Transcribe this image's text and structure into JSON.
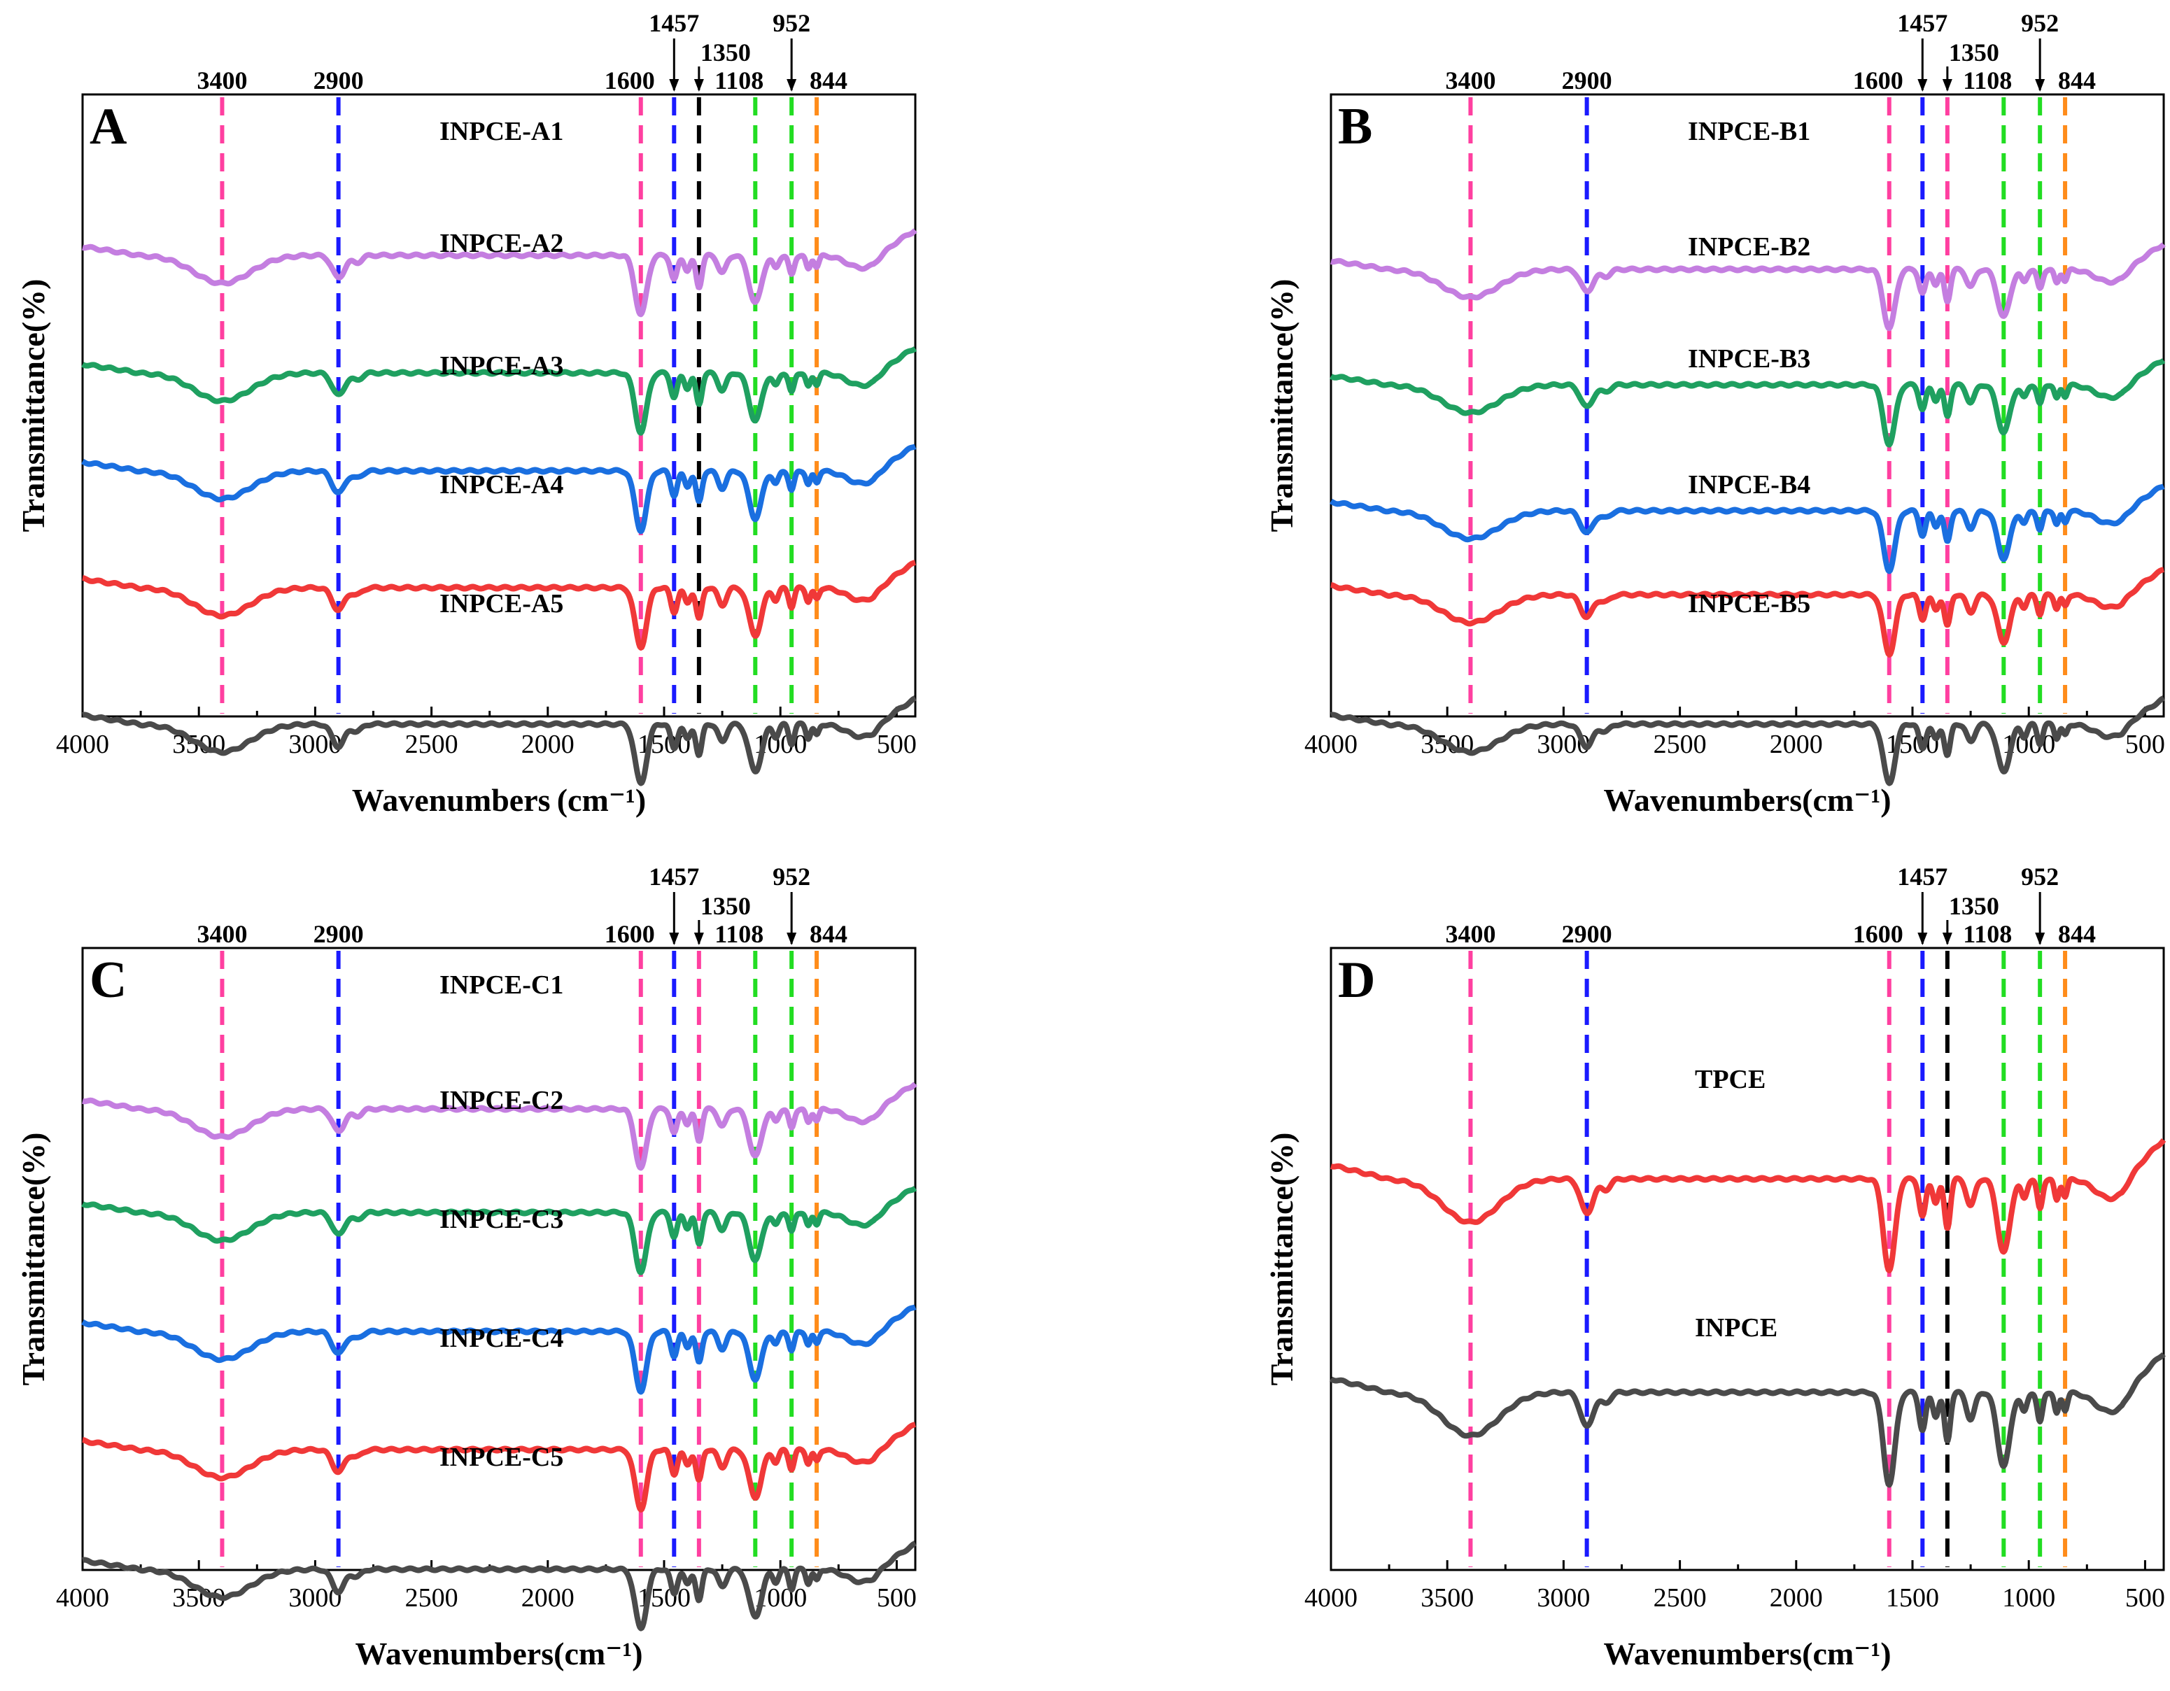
{
  "chart_data": [
    {
      "type": "line",
      "panel": "A",
      "title": "",
      "xlabel": "Wavenumbers (cm⁻¹)",
      "ylabel": "Transmittance(%)",
      "xlim": [
        4000,
        420
      ],
      "x_ticks": [
        "4000",
        "3500",
        "3000",
        "2500",
        "2000",
        "1500",
        "1000",
        "500"
      ],
      "markers": [
        {
          "x": 3400,
          "label": "3400",
          "color": "#ff3fa0"
        },
        {
          "x": 2900,
          "label": "2900",
          "color": "#1a1aff"
        },
        {
          "x": 1600,
          "label": "1600",
          "color": "#ff3fa0"
        },
        {
          "x": 1457,
          "label": "1457",
          "color": "#1a1aff",
          "arrow": true
        },
        {
          "x": 1350,
          "label": "1350",
          "color": "#000000",
          "arrow": true
        },
        {
          "x": 1108,
          "label": "1108",
          "color": "#22dd22"
        },
        {
          "x": 952,
          "label": "952",
          "color": "#22dd22",
          "arrow": true
        },
        {
          "x": 844,
          "label": "844",
          "color": "#ff8c1a"
        }
      ],
      "series": [
        {
          "name": "INPCE-A1",
          "color": "#c47ee0"
        },
        {
          "name": "INPCE-A2",
          "color": "#1fa060"
        },
        {
          "name": "INPCE-A3",
          "color": "#1a6fe0"
        },
        {
          "name": "INPCE-A4",
          "color": "#f03838"
        },
        {
          "name": "INPCE-A5",
          "color": "#4a4a4a"
        }
      ]
    },
    {
      "type": "line",
      "panel": "B",
      "title": "",
      "xlabel": "Wavenumbers(cm⁻¹)",
      "ylabel": "Transmittance(%)",
      "xlim": [
        4000,
        420
      ],
      "x_ticks": [
        "4000",
        "3500",
        "3000",
        "2500",
        "2000",
        "1500",
        "1000",
        "500"
      ],
      "markers": [
        {
          "x": 3400,
          "label": "3400",
          "color": "#ff3fa0"
        },
        {
          "x": 2900,
          "label": "2900",
          "color": "#1a1aff"
        },
        {
          "x": 1600,
          "label": "1600",
          "color": "#ff3fa0"
        },
        {
          "x": 1457,
          "label": "1457",
          "color": "#1a1aff",
          "arrow": true
        },
        {
          "x": 1350,
          "label": "1350",
          "color": "#ff3fa0",
          "arrow": true
        },
        {
          "x": 1108,
          "label": "1108",
          "color": "#22dd22"
        },
        {
          "x": 952,
          "label": "952",
          "color": "#22dd22",
          "arrow": true
        },
        {
          "x": 844,
          "label": "844",
          "color": "#ff8c1a"
        }
      ],
      "series": [
        {
          "name": "INPCE-B1",
          "color": "#c47ee0"
        },
        {
          "name": "INPCE-B2",
          "color": "#1fa060"
        },
        {
          "name": "INPCE-B3",
          "color": "#1a6fe0"
        },
        {
          "name": "INPCE-B4",
          "color": "#f03838"
        },
        {
          "name": "INPCE-B5",
          "color": "#4a4a4a"
        }
      ]
    },
    {
      "type": "line",
      "panel": "C",
      "title": "",
      "xlabel": "Wavenumbers(cm⁻¹)",
      "ylabel": "Transmittance(%)",
      "xlim": [
        4000,
        420
      ],
      "x_ticks": [
        "4000",
        "3500",
        "3000",
        "2500",
        "2000",
        "1500",
        "1000",
        "500"
      ],
      "markers": [
        {
          "x": 3400,
          "label": "3400",
          "color": "#ff3fa0"
        },
        {
          "x": 2900,
          "label": "2900",
          "color": "#1a1aff"
        },
        {
          "x": 1600,
          "label": "1600",
          "color": "#ff3fa0"
        },
        {
          "x": 1457,
          "label": "1457",
          "color": "#1a1aff",
          "arrow": true
        },
        {
          "x": 1350,
          "label": "1350",
          "color": "#ff3fa0",
          "arrow": true
        },
        {
          "x": 1108,
          "label": "1108",
          "color": "#22dd22"
        },
        {
          "x": 952,
          "label": "952",
          "color": "#22dd22",
          "arrow": true
        },
        {
          "x": 844,
          "label": "844",
          "color": "#ff8c1a"
        }
      ],
      "series": [
        {
          "name": "INPCE-C1",
          "color": "#c47ee0"
        },
        {
          "name": "INPCE-C2",
          "color": "#1fa060"
        },
        {
          "name": "INPCE-C3",
          "color": "#1a6fe0"
        },
        {
          "name": "INPCE-C4",
          "color": "#f03838"
        },
        {
          "name": "INPCE-C5",
          "color": "#4a4a4a"
        }
      ]
    },
    {
      "type": "line",
      "panel": "D",
      "title": "",
      "xlabel": "Wavenumbers(cm⁻¹)",
      "ylabel": "Transmittance(%)",
      "xlim": [
        4000,
        420
      ],
      "x_ticks": [
        "4000",
        "3500",
        "3000",
        "2500",
        "2000",
        "1500",
        "1000",
        "500"
      ],
      "markers": [
        {
          "x": 3400,
          "label": "3400",
          "color": "#ff3fa0"
        },
        {
          "x": 2900,
          "label": "2900",
          "color": "#1a1aff"
        },
        {
          "x": 1600,
          "label": "1600",
          "color": "#ff3fa0"
        },
        {
          "x": 1457,
          "label": "1457",
          "color": "#1a1aff",
          "arrow": true
        },
        {
          "x": 1350,
          "label": "1350",
          "color": "#000000",
          "arrow": true
        },
        {
          "x": 1108,
          "label": "1108",
          "color": "#22dd22"
        },
        {
          "x": 952,
          "label": "952",
          "color": "#22dd22",
          "arrow": true
        },
        {
          "x": 844,
          "label": "844",
          "color": "#ff8c1a"
        }
      ],
      "series": [
        {
          "name": "TPCE",
          "color": "#f03838"
        },
        {
          "name": "INPCE",
          "color": "#4a4a4a"
        }
      ]
    }
  ]
}
